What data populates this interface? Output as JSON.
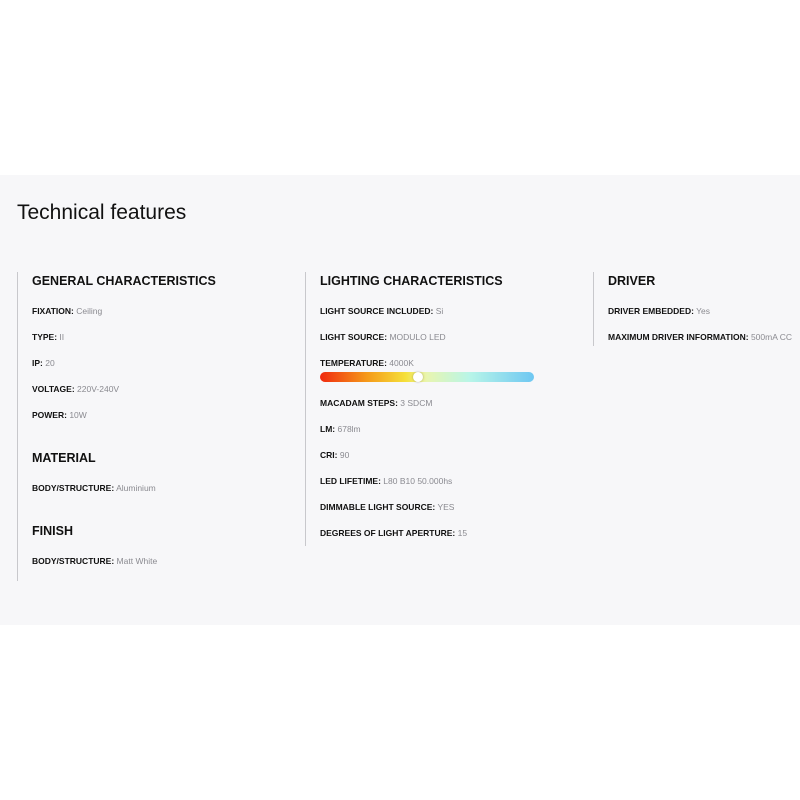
{
  "title": "Technical features",
  "general": {
    "heading": "GENERAL CHARACTERISTICS",
    "items": [
      {
        "label": "FIXATION:",
        "value": "Ceiling"
      },
      {
        "label": "TYPE:",
        "value": "II"
      },
      {
        "label": "IP:",
        "value": "20"
      },
      {
        "label": "VOLTAGE:",
        "value": "220V-240V"
      },
      {
        "label": "POWER:",
        "value": "10W"
      }
    ]
  },
  "material": {
    "heading": "MATERIAL",
    "items": [
      {
        "label": "BODY/STRUCTURE:",
        "value": "Aluminium"
      }
    ]
  },
  "finish": {
    "heading": "FINISH",
    "items": [
      {
        "label": "BODY/STRUCTURE:",
        "value": "Matt White"
      }
    ]
  },
  "lighting": {
    "heading": "LIGHTING CHARACTERISTICS",
    "items": [
      {
        "label": "LIGHT SOURCE INCLUDED:",
        "value": "Si"
      },
      {
        "label": "LIGHT SOURCE:",
        "value": "MODULO LED"
      },
      {
        "label": "TEMPERATURE:",
        "value": "4000K"
      },
      {
        "label": "MACADAM STEPS:",
        "value": "3 SDCM"
      },
      {
        "label": "LM:",
        "value": "678lm"
      },
      {
        "label": "CRI:",
        "value": "90"
      },
      {
        "label": "LED LIFETIME:",
        "value": "L80 B10 50.000hs"
      },
      {
        "label": "DIMMABLE LIGHT SOURCE:",
        "value": "YES"
      },
      {
        "label": "DEGREES OF LIGHT APERTURE:",
        "value": "15"
      }
    ],
    "temperature_scale_position": 0.46
  },
  "driver": {
    "heading": "DRIVER",
    "items": [
      {
        "label": "DRIVER EMBEDDED:",
        "value": "Yes"
      },
      {
        "label": "MAXIMUM DRIVER INFORMATION:",
        "value": "500mA CC"
      }
    ]
  }
}
